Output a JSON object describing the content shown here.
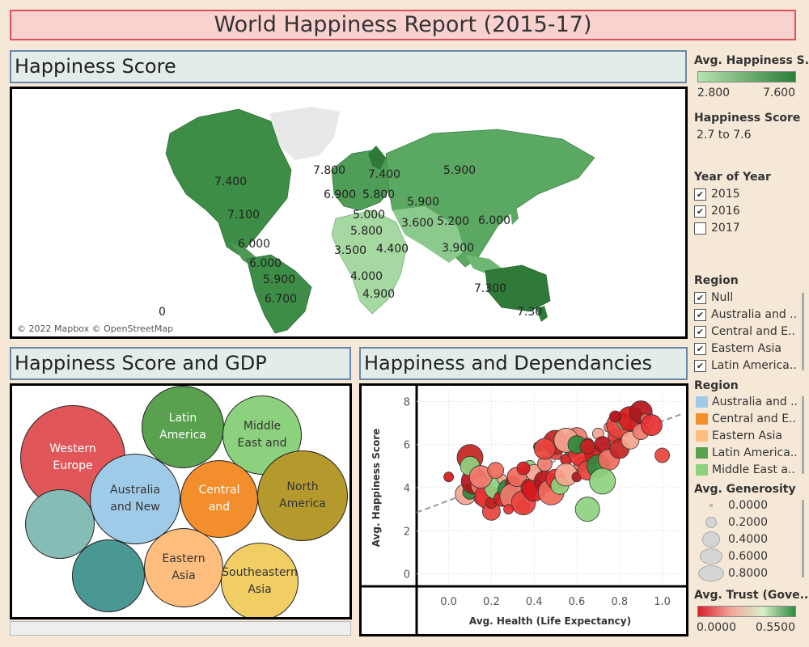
{
  "dashboard": {
    "title": "World Happiness Report (2015-17)"
  },
  "map_panel": {
    "header": "Happiness Score",
    "attribution": "© 2022 Mapbox © OpenStreetMap",
    "labels": [
      "7.400",
      "7.100",
      "6.000",
      "6.000",
      "5.900",
      "6.700",
      "0",
      "7.800",
      "7.400",
      "6.900",
      "5.800",
      "5.900",
      "5.000",
      "5.800",
      "3.600",
      "5.200",
      "6.000",
      "3.500",
      "4.400",
      "4.000",
      "4.900",
      "3.900",
      "5.900",
      "7.300",
      "7.30"
    ]
  },
  "gdp_panel": {
    "header": "Happiness Score and GDP",
    "bubbles": [
      {
        "label": "Western\nEurope",
        "color": "#e15759"
      },
      {
        "label": "Latin\nAmerica",
        "color": "#59a14f"
      },
      {
        "label": "Middle\nEast and",
        "color": "#8cd17d"
      },
      {
        "label": "Australia\nand New",
        "color": "#a0cbe8"
      },
      {
        "label": "Central\nand",
        "color": "#f28e2b"
      },
      {
        "label": "North\nAmerica",
        "color": "#b6992d"
      },
      {
        "label": "",
        "color": "#86bcb6"
      },
      {
        "label": "",
        "color": "#499894"
      },
      {
        "label": "Eastern\nAsia",
        "color": "#ffbe7d"
      },
      {
        "label": "Southeastern Asia",
        "color": "#f1ce63"
      }
    ]
  },
  "scatter_panel": {
    "header": "Happiness and Dependancies",
    "y_axis_label": "Avg. Happiness Score",
    "x_axis_label": "Avg. Health (Life Expectancy)",
    "y_ticks": [
      "0",
      "2",
      "4",
      "6",
      "8"
    ],
    "x_ticks": [
      "0.0",
      "0.2",
      "0.4",
      "0.6",
      "0.8",
      "1.0"
    ]
  },
  "legend": {
    "avg_happiness": {
      "title": "Avg. Happiness S..",
      "min": "2.800",
      "max": "7.600"
    },
    "happiness_filter": {
      "title": "Happiness Score",
      "range": "2.7 to 7.6"
    },
    "year": {
      "title": "Year of Year",
      "options": [
        {
          "label": "2015",
          "checked": true
        },
        {
          "label": "2016",
          "checked": true
        },
        {
          "label": "2017",
          "checked": false
        }
      ]
    },
    "region_filter": {
      "title": "Region",
      "options": [
        {
          "label": "Null",
          "checked": true
        },
        {
          "label": "Australia and ..",
          "checked": true
        },
        {
          "label": "Central and E..",
          "checked": true
        },
        {
          "label": "Eastern Asia",
          "checked": true
        },
        {
          "label": "Latin America..",
          "checked": true
        }
      ]
    },
    "region_color": {
      "title": "Region",
      "items": [
        {
          "label": "Australia and ..",
          "color": "#a0cbe8"
        },
        {
          "label": "Central and E..",
          "color": "#f28e2b"
        },
        {
          "label": "Eastern Asia",
          "color": "#ffbe7d"
        },
        {
          "label": "Latin America..",
          "color": "#59a14f"
        },
        {
          "label": "Middle East a..",
          "color": "#8cd17d"
        }
      ]
    },
    "generosity": {
      "title": "Avg. Generosity",
      "items": [
        "0.0000",
        "0.2000",
        "0.4000",
        "0.6000",
        "0.8000"
      ]
    },
    "trust": {
      "title": "Avg. Trust (Gove...",
      "min": "0.0000",
      "max": "0.5500"
    }
  },
  "chart_data": {
    "type": "scatter",
    "xlabel": "Avg. Health (Life Expectancy)",
    "ylabel": "Avg. Happiness Score",
    "xlim": [
      -0.15,
      1.1
    ],
    "ylim": [
      -0.5,
      8.5
    ],
    "points": [
      [
        0.0,
        4.5
      ],
      [
        0.08,
        3.7
      ],
      [
        0.1,
        3.8
      ],
      [
        0.12,
        4.3
      ],
      [
        0.15,
        4.1
      ],
      [
        0.15,
        3.5
      ],
      [
        0.18,
        3.6
      ],
      [
        0.2,
        2.9
      ],
      [
        0.2,
        3.3
      ],
      [
        0.22,
        4.0
      ],
      [
        0.25,
        3.5
      ],
      [
        0.25,
        4.4
      ],
      [
        0.28,
        3.9
      ],
      [
        0.3,
        4.2
      ],
      [
        0.3,
        3.6
      ],
      [
        0.32,
        4.5
      ],
      [
        0.35,
        3.1
      ],
      [
        0.35,
        3.3
      ],
      [
        0.38,
        4.0
      ],
      [
        0.38,
        5.0
      ],
      [
        0.4,
        3.9
      ],
      [
        0.4,
        4.7
      ],
      [
        0.42,
        5.9
      ],
      [
        0.45,
        4.3
      ],
      [
        0.45,
        5.1
      ],
      [
        0.48,
        3.8
      ],
      [
        0.5,
        4.4
      ],
      [
        0.5,
        5.6
      ],
      [
        0.5,
        6.1
      ],
      [
        0.52,
        4.1
      ],
      [
        0.55,
        5.3
      ],
      [
        0.55,
        4.6
      ],
      [
        0.58,
        5.8
      ],
      [
        0.6,
        4.5
      ],
      [
        0.6,
        6.3
      ],
      [
        0.62,
        5.1
      ],
      [
        0.62,
        5.6
      ],
      [
        0.65,
        4.8
      ],
      [
        0.65,
        6.0
      ],
      [
        0.65,
        3.0
      ],
      [
        0.68,
        5.5
      ],
      [
        0.7,
        6.5
      ],
      [
        0.7,
        5.0
      ],
      [
        0.72,
        6.0
      ],
      [
        0.75,
        6.8
      ],
      [
        0.75,
        5.3
      ],
      [
        0.78,
        6.4
      ],
      [
        0.8,
        6.9
      ],
      [
        0.8,
        5.8
      ],
      [
        0.82,
        7.0
      ],
      [
        0.85,
        7.2
      ],
      [
        0.85,
        6.2
      ],
      [
        0.88,
        7.4
      ],
      [
        0.9,
        7.5
      ],
      [
        0.9,
        6.6
      ],
      [
        0.92,
        7.2
      ],
      [
        0.95,
        6.9
      ],
      [
        1.0,
        5.5
      ],
      [
        0.1,
        5.4
      ],
      [
        0.1,
        5.0
      ],
      [
        0.35,
        4.9
      ],
      [
        0.55,
        6.2
      ],
      [
        0.6,
        6.0
      ],
      [
        0.78,
        7.3
      ],
      [
        0.15,
        4.5
      ],
      [
        0.22,
        4.8
      ],
      [
        0.28,
        3.0
      ],
      [
        0.45,
        5.8
      ],
      [
        0.65,
        5.9
      ],
      [
        0.72,
        4.3
      ]
    ],
    "trend_line": [
      [
        -0.15,
        2.85
      ],
      [
        1.1,
        7.45
      ]
    ]
  }
}
